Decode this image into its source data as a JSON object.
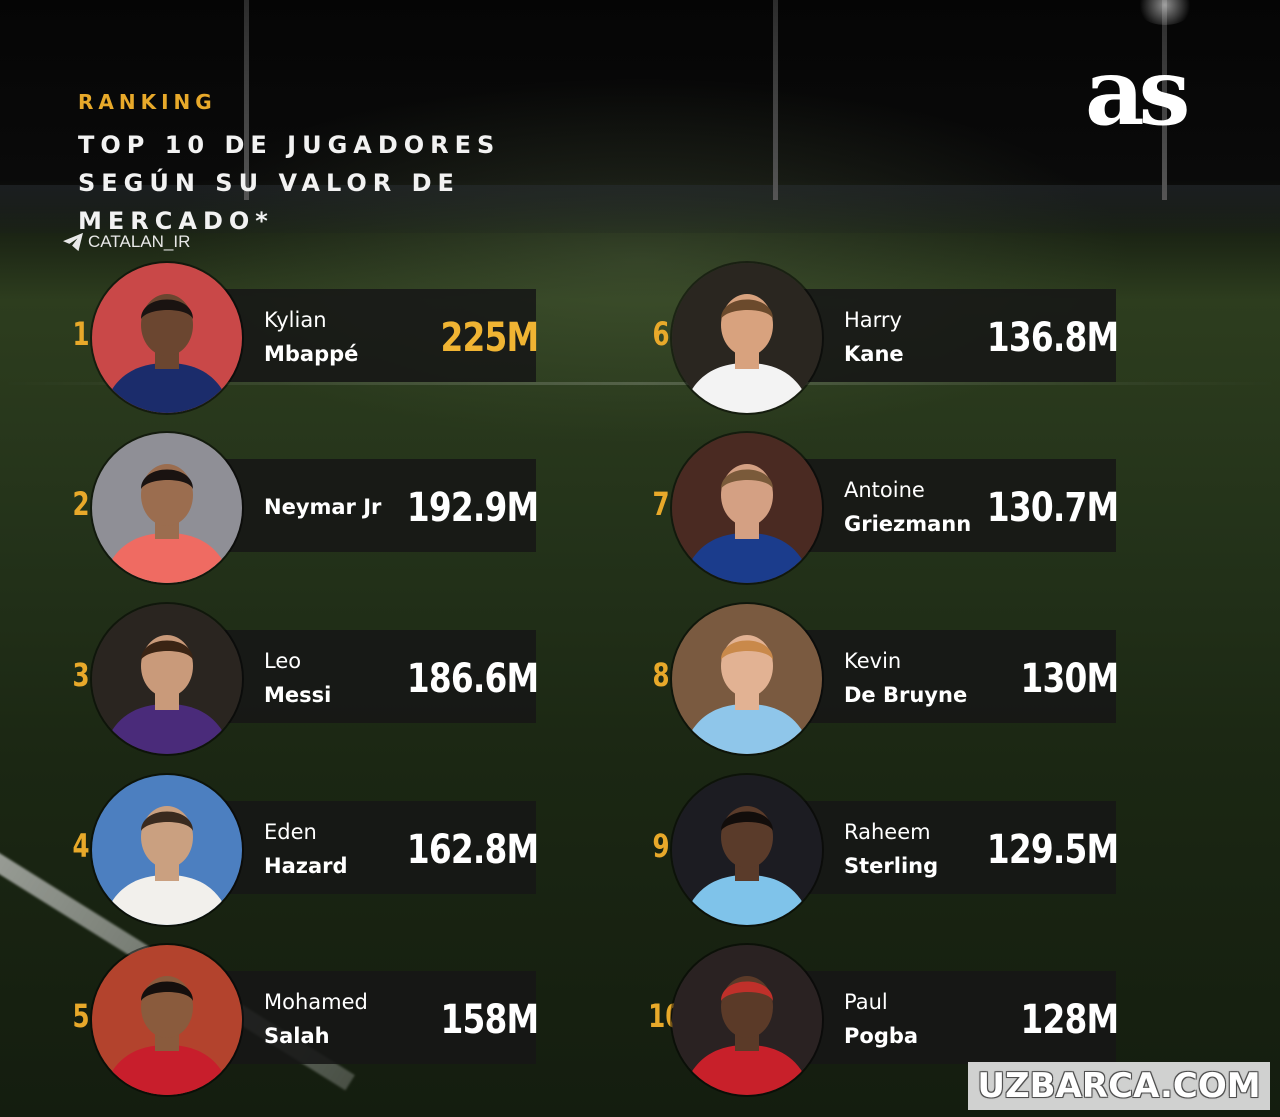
{
  "header": {
    "eyebrow": "RANKING",
    "title_lines": [
      "TOP 10 DE JUGADORES",
      "SEGÚN SU VALOR DE",
      "MERCADO*"
    ],
    "handle": "CATALAN_IR",
    "logo": "as"
  },
  "players": [
    {
      "rank": "1",
      "first": "Kylian",
      "last": "Mbappé",
      "value": "225M",
      "highlight": true,
      "jersey": "#1b2c6b",
      "skin": "#6b4630",
      "bg": "#c94848",
      "hair": "#1a1311",
      "icon": "player-photo"
    },
    {
      "rank": "2",
      "first": "",
      "last": "Neymar Jr",
      "value": "192.9M",
      "highlight": false,
      "jersey": "#ef6b62",
      "skin": "#9b6d4f",
      "bg": "#8f8f96",
      "hair": "#1a1311",
      "icon": "player-photo"
    },
    {
      "rank": "3",
      "first": "Leo",
      "last": "Messi",
      "value": "186.6M",
      "highlight": false,
      "jersey": "#4a2b7a",
      "skin": "#c99a7a",
      "bg": "#2a2520",
      "hair": "#3a2414",
      "icon": "player-photo"
    },
    {
      "rank": "4",
      "first": "Eden",
      "last": "Hazard",
      "value": "162.8M",
      "highlight": false,
      "jersey": "#f2f0ec",
      "skin": "#caa080",
      "bg": "#4c7fc0",
      "hair": "#3a2a1e",
      "icon": "player-photo"
    },
    {
      "rank": "5",
      "first": "Mohamed",
      "last": "Salah",
      "value": "158M",
      "highlight": false,
      "jersey": "#c81e2c",
      "skin": "#8a5b3d",
      "bg": "#b3432d",
      "hair": "#150f0d",
      "icon": "player-photo"
    },
    {
      "rank": "6",
      "first": "Harry",
      "last": "Kane",
      "value": "136.8M",
      "highlight": false,
      "jersey": "#f3f3f3",
      "skin": "#d8a27e",
      "bg": "#2a2620",
      "hair": "#6b4a2c",
      "icon": "player-photo"
    },
    {
      "rank": "7",
      "first": "Antoine",
      "last": "Griezmann",
      "value": "130.7M",
      "highlight": false,
      "jersey": "#1b3c8c",
      "skin": "#d4a083",
      "bg": "#4a2a22",
      "hair": "#7a5a3a",
      "icon": "player-photo"
    },
    {
      "rank": "8",
      "first": "Kevin",
      "last": "De Bruyne",
      "value": "130M",
      "highlight": false,
      "jersey": "#8fc6ea",
      "skin": "#e2b293",
      "bg": "#7a5a40",
      "hair": "#c9894a",
      "icon": "player-photo"
    },
    {
      "rank": "9",
      "first": "Raheem",
      "last": "Sterling",
      "value": "129.5M",
      "highlight": false,
      "jersey": "#7fc3ea",
      "skin": "#5a3b2a",
      "bg": "#1c1c22",
      "hair": "#120d0b",
      "icon": "player-photo"
    },
    {
      "rank": "10",
      "first": "Paul",
      "last": "Pogba",
      "value": "128M",
      "highlight": false,
      "jersey": "#c8202a",
      "skin": "#5b3a28",
      "bg": "#2a2222",
      "hair": "#c0302a",
      "icon": "player-photo"
    }
  ],
  "watermark": "UZBARCA.COM"
}
